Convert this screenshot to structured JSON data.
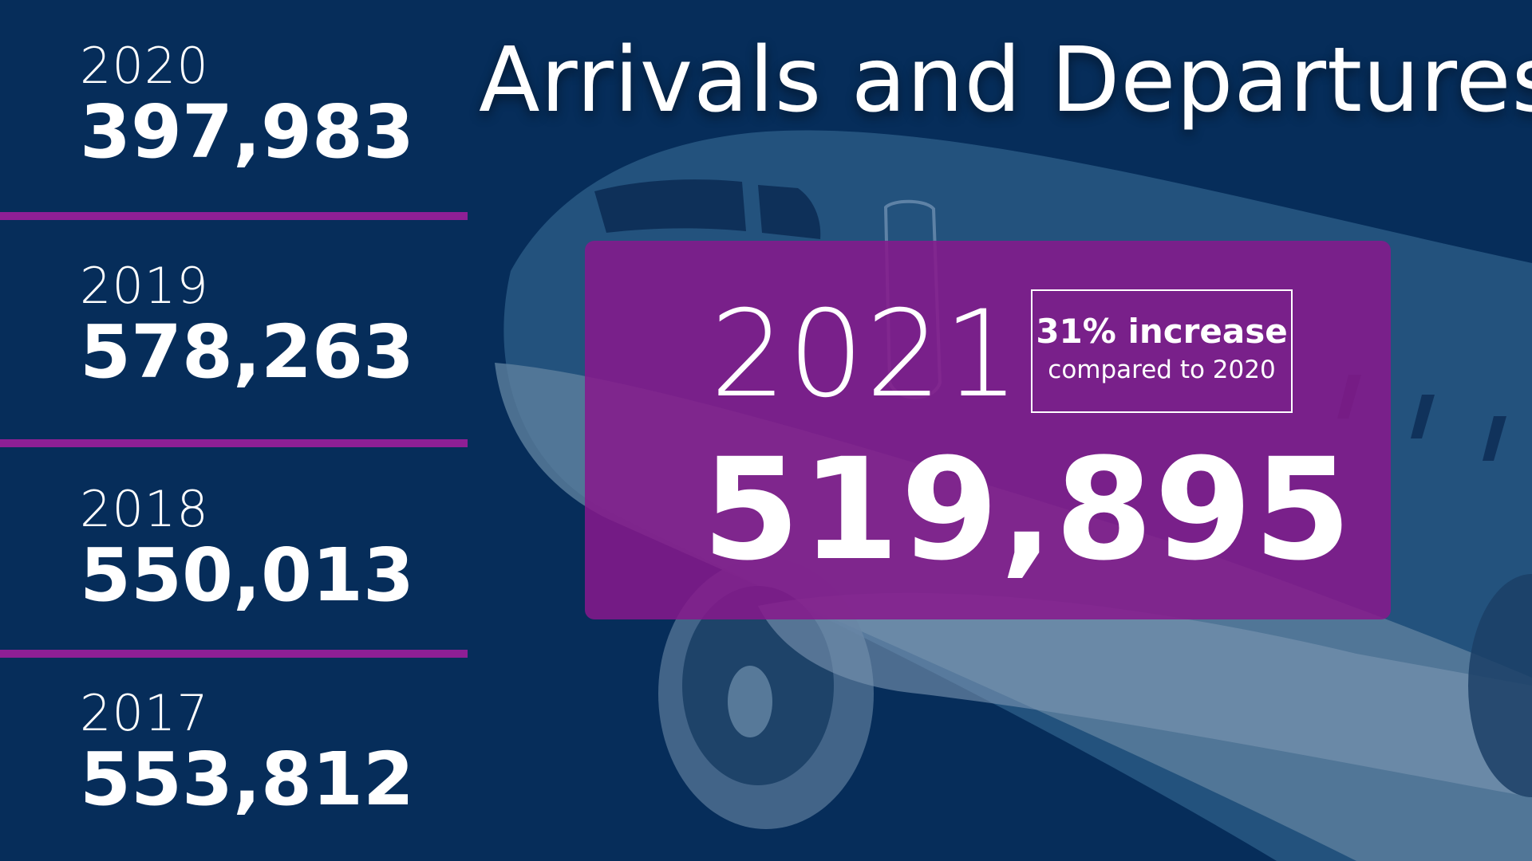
{
  "title": "Arrivals and Departures",
  "history": [
    {
      "year": "2020",
      "value": "397,983"
    },
    {
      "year": "2019",
      "value": "578,263"
    },
    {
      "year": "2018",
      "value": "550,013"
    },
    {
      "year": "2017",
      "value": "553,812"
    }
  ],
  "highlight": {
    "year": "2021",
    "value": "519,895",
    "badge_main": "31% increase",
    "badge_sub": "compared to 2020"
  },
  "colors": {
    "background": "#062d5a",
    "accent": "#8e1f95",
    "highlight_box": "#87198c",
    "text": "#ffffff"
  },
  "background_image": "airplane-illustration"
}
